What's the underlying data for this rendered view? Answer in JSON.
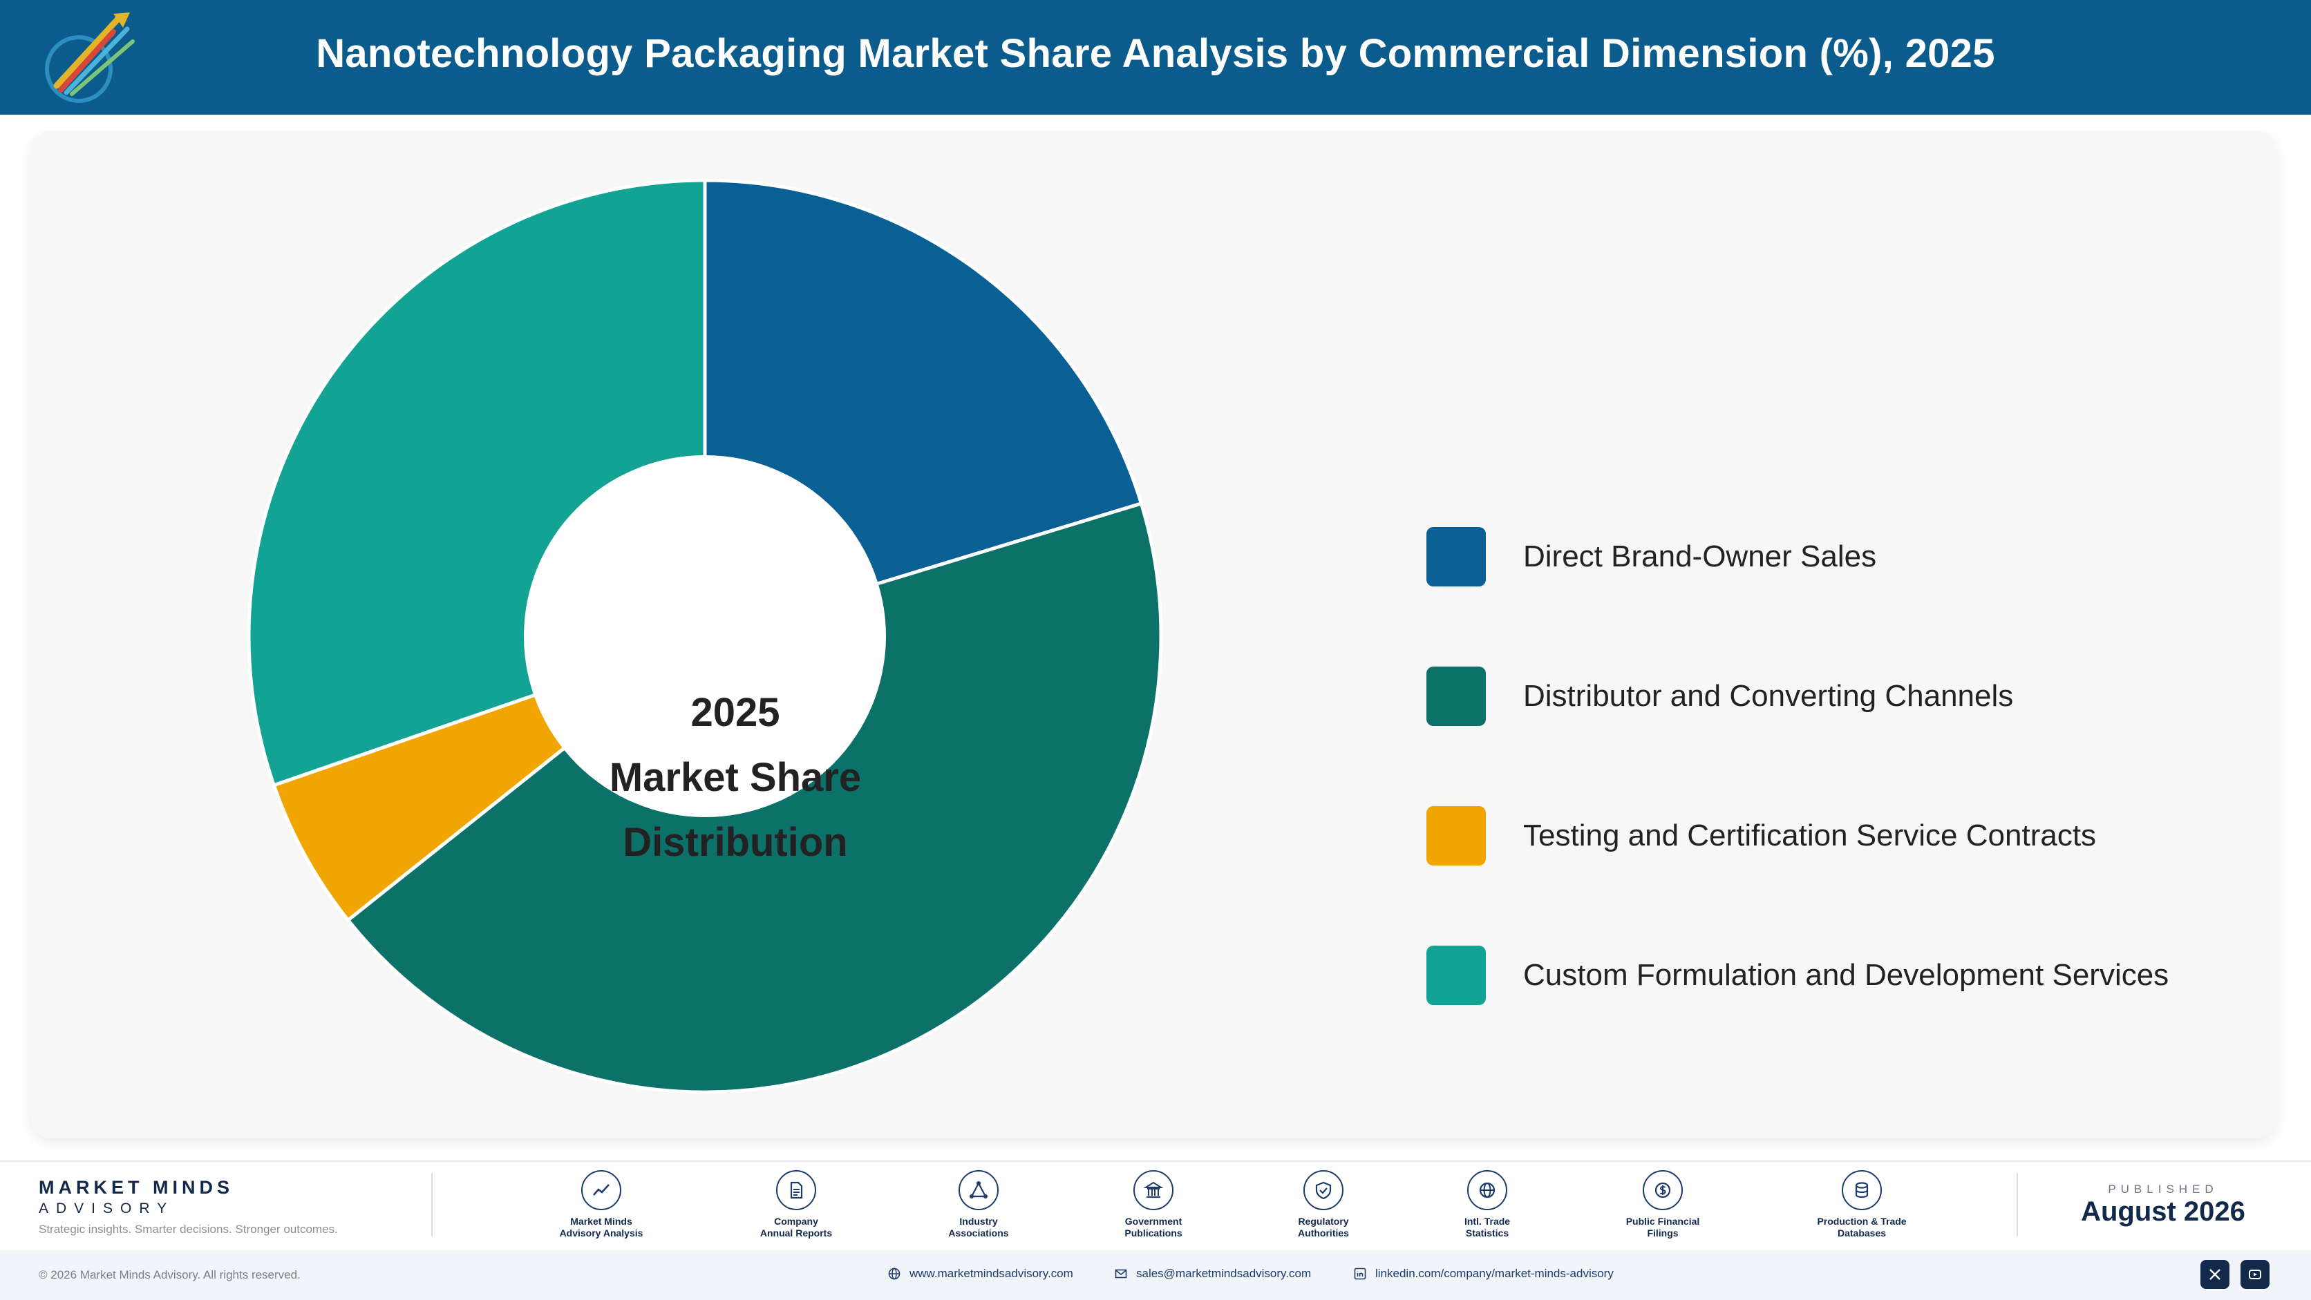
{
  "header": {
    "title": "Nanotechnology Packaging Market Share Analysis by Commercial Dimension (%), 2025"
  },
  "chart_data": {
    "type": "pie",
    "title": "Nanotechnology Packaging Market Share Analysis by Commercial Dimension (%), 2025",
    "center_label": [
      "2025",
      "Market Share",
      "Distribution"
    ],
    "categories": [
      "Direct Brand-Owner Sales",
      "Distributor and Converting Channels",
      "Testing and Certification Service Contracts",
      "Custom Formulation and Development Services"
    ],
    "values": [
      20.3,
      44.0,
      5.4,
      30.3
    ],
    "colors": [
      "#0a5f94",
      "#0b7169",
      "#f0a500",
      "#12a394"
    ],
    "legend_position": "right"
  },
  "footer": {
    "brand_name": "MARKET MINDS",
    "brand_sub": "ADVISORY",
    "brand_tagline": "Strategic insights. Smarter decisions. Stronger outcomes.",
    "sources": [
      {
        "line1": "Market Minds",
        "line2": "Advisory Analysis",
        "icon": "trend-chart-icon"
      },
      {
        "line1": "Company",
        "line2": "Annual Reports",
        "icon": "document-icon"
      },
      {
        "line1": "Industry",
        "line2": "Associations",
        "icon": "network-icon"
      },
      {
        "line1": "Government",
        "line2": "Publications",
        "icon": "building-icon"
      },
      {
        "line1": "Regulatory",
        "line2": "Authorities",
        "icon": "shield-icon"
      },
      {
        "line1": "Intl. Trade",
        "line2": "Statistics",
        "icon": "globe-icon"
      },
      {
        "line1": "Public Financial",
        "line2": "Filings",
        "icon": "coin-icon"
      },
      {
        "line1": "Production & Trade",
        "line2": "Databases",
        "icon": "database-icon"
      }
    ],
    "published_label": "PUBLISHED",
    "published_date": "August 2026",
    "copyright": "© 2026 Market Minds Advisory. All rights reserved.",
    "website": "www.marketmindsadvisory.com",
    "email": "sales@marketmindsadvisory.com",
    "linkedin": "linkedin.com/company/market-minds-advisory"
  }
}
